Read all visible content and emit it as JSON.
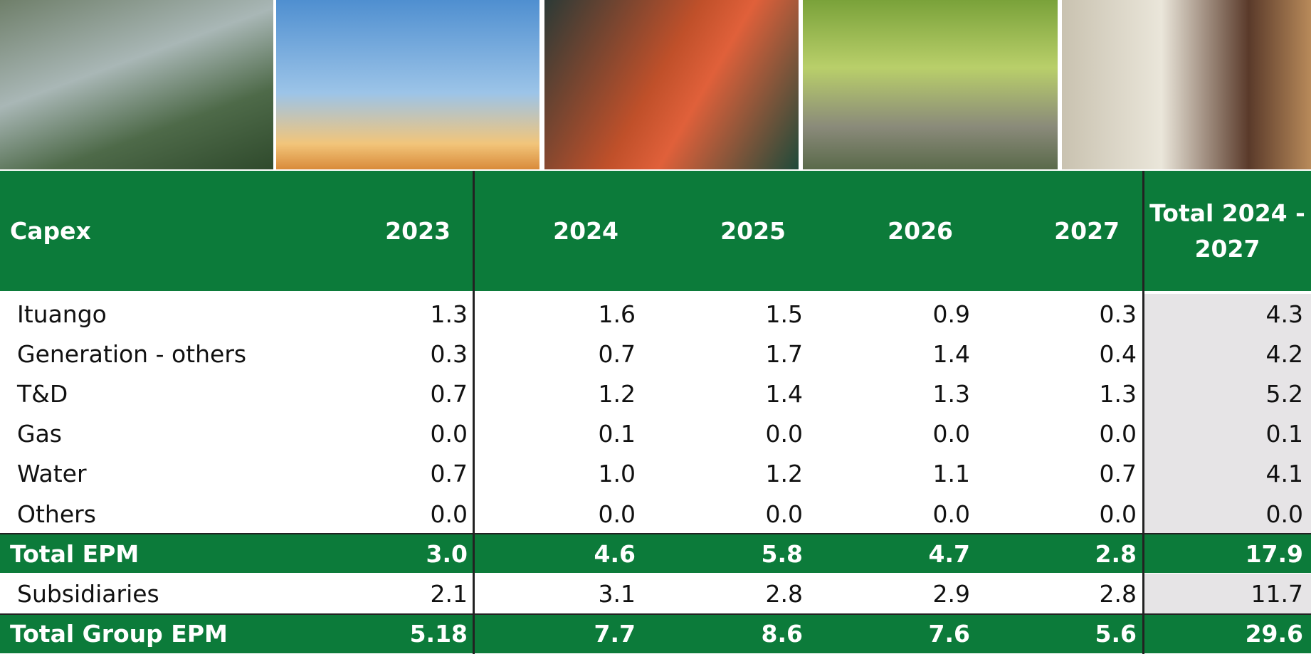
{
  "table": {
    "header": [
      "Capex",
      "2023",
      "2024",
      "2025",
      "2026",
      "2027",
      "Total 2024 - 2027"
    ],
    "rows": [
      [
        "Ituango",
        "1.3",
        "1.6",
        "1.5",
        "0.9",
        "0.3",
        "4.3"
      ],
      [
        "Generation - others",
        "0.3",
        "0.7",
        "1.7",
        "1.4",
        "0.4",
        "4.2"
      ],
      [
        "T&D",
        "0.7",
        "1.2",
        "1.4",
        "1.3",
        "1.3",
        "5.2"
      ],
      [
        "Gas",
        "0.0",
        "0.1",
        "0.0",
        "0.0",
        "0.0",
        "0.1"
      ],
      [
        "Water",
        "0.7",
        "1.0",
        "1.2",
        "1.1",
        "0.7",
        "4.1"
      ],
      [
        "Others",
        "0.0",
        "0.0",
        "0.0",
        "0.0",
        "0.0",
        "0.0"
      ],
      [
        "Total EPM",
        "3.0",
        "4.6",
        "5.8",
        "4.7",
        "2.8",
        "17.9"
      ],
      [
        "Subsidiaries",
        "2.1",
        "3.1",
        "2.8",
        "2.9",
        "2.8",
        "11.7"
      ],
      [
        "Total Group EPM",
        "5.18",
        "7.7",
        "8.6",
        "7.6",
        "5.6",
        "29.6"
      ]
    ]
  }
}
